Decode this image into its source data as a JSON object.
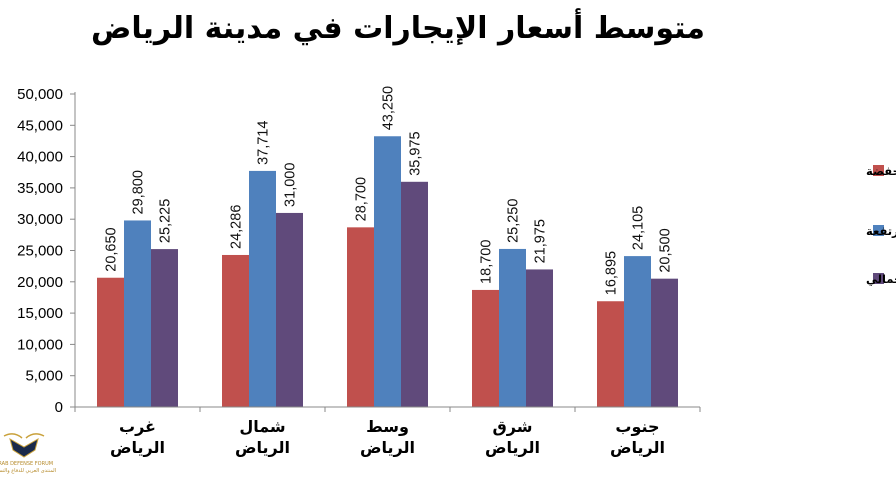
{
  "chart_data": {
    "type": "bar",
    "title": "متوسط أسعار الإيجارات في مدينة الرياض",
    "categories": [
      [
        "غرب",
        "الرياض"
      ],
      [
        "شمال",
        "الرياض"
      ],
      [
        "وسط",
        "الرياض"
      ],
      [
        "شرق",
        "الرياض"
      ],
      [
        "جنوب",
        "الرياض"
      ]
    ],
    "series": [
      {
        "name": "متوسط الأسعار المنخفضة",
        "color": "#c0504d",
        "values": [
          20650,
          24286,
          28700,
          18700,
          16895
        ],
        "labels": [
          "20,650",
          "24,286",
          "28,700",
          "18,700",
          "16,895"
        ]
      },
      {
        "name": "متوسط الأسعار المرتفعة",
        "color": "#4f81bd",
        "values": [
          29800,
          37714,
          43250,
          25250,
          24105
        ],
        "labels": [
          "29,800",
          "37,714",
          "43,250",
          "25,250",
          "24,105"
        ]
      },
      {
        "name": "المتوسط الإجمالي",
        "color": "#604a7b",
        "values": [
          25225,
          31000,
          35975,
          21975,
          20500
        ],
        "labels": [
          "25,225",
          "31,000",
          "35,975",
          "21,975",
          "20,500"
        ]
      }
    ],
    "yticks": [
      "0",
      "5,000",
      "10,000",
      "15,000",
      "20,000",
      "25,000",
      "30,000",
      "35,000",
      "40,000",
      "45,000",
      "50,000"
    ],
    "ylim": [
      0,
      50000
    ],
    "legend_position": "right",
    "grid": false
  },
  "watermark": {
    "text_line1": "ARAB DEFENSE FORUM",
    "text_line2": "المنتدى العربي للدفاع والتسليح"
  }
}
